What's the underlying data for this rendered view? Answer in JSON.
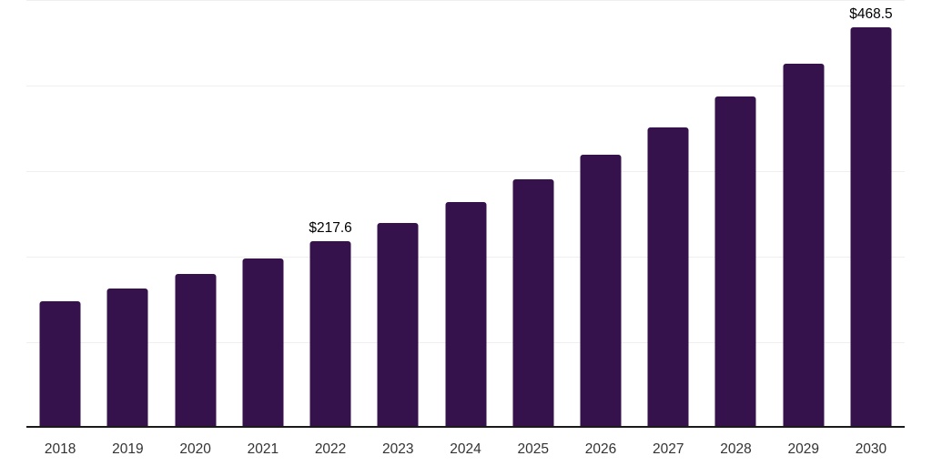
{
  "chart_data": {
    "type": "bar",
    "title": "",
    "xlabel": "",
    "ylabel": "",
    "categories": [
      "2018",
      "2019",
      "2020",
      "2021",
      "2022",
      "2023",
      "2024",
      "2025",
      "2026",
      "2027",
      "2028",
      "2029",
      "2030"
    ],
    "values": [
      148.3,
      163.2,
      179.6,
      197.7,
      217.6,
      239.5,
      263.6,
      290.1,
      319.3,
      351.4,
      386.8,
      425.7,
      468.5
    ],
    "value_prefix": "$",
    "annotations": [
      {
        "category": "2022",
        "text": "$217.6"
      },
      {
        "category": "2030",
        "text": "$468.5"
      }
    ],
    "ylim": [
      0,
      500
    ],
    "gridlines": [
      100,
      200,
      300,
      400,
      500
    ],
    "grid": "horizontal-only",
    "legend_position": "none",
    "colors": {
      "bar": "#35124b",
      "gridline": "#efefef",
      "axis_line": "#1a1a1a",
      "tick_label": "#333333",
      "annotation_text": "#000000",
      "background": "#ffffff"
    }
  }
}
